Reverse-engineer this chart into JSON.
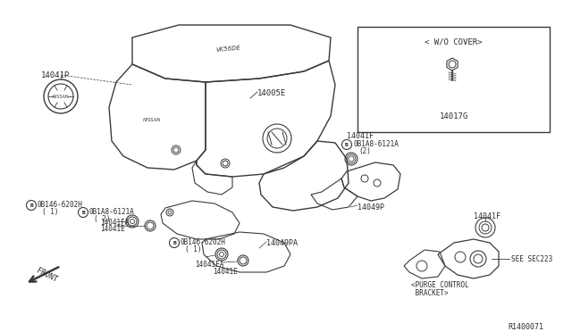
{
  "bg_color": "#ffffff",
  "line_color": "#3a3a3a",
  "text_color": "#2a2a2a",
  "diagram_id": "R1400071",
  "wo_cover_label": "< W/O COVER>",
  "main_cover_label": "14005E",
  "cap_label": "14041P",
  "bolt_wo_cover": "14017G",
  "bracket_label_1": "14041F",
  "bracket_label_2": "14041F",
  "bracket_purge": "14049P",
  "bracket_purge_lower": "14049PA",
  "bolt_b1": "0B1A8-6121A",
  "bolt_b2_1": "0B146-6202H",
  "bolt_b2_2": "0B1A8-6121A",
  "bolt_b3": "0B146-6202H",
  "washer_1": "14041FA",
  "washer_2": "14041E",
  "washer_3": "14041FA",
  "washer_4": "14041E",
  "see_sec": "SEE SEC223",
  "purge_label1": "<PURGE CONTROL",
  "purge_label2": " BRACKET>",
  "front_label": "FRONT"
}
